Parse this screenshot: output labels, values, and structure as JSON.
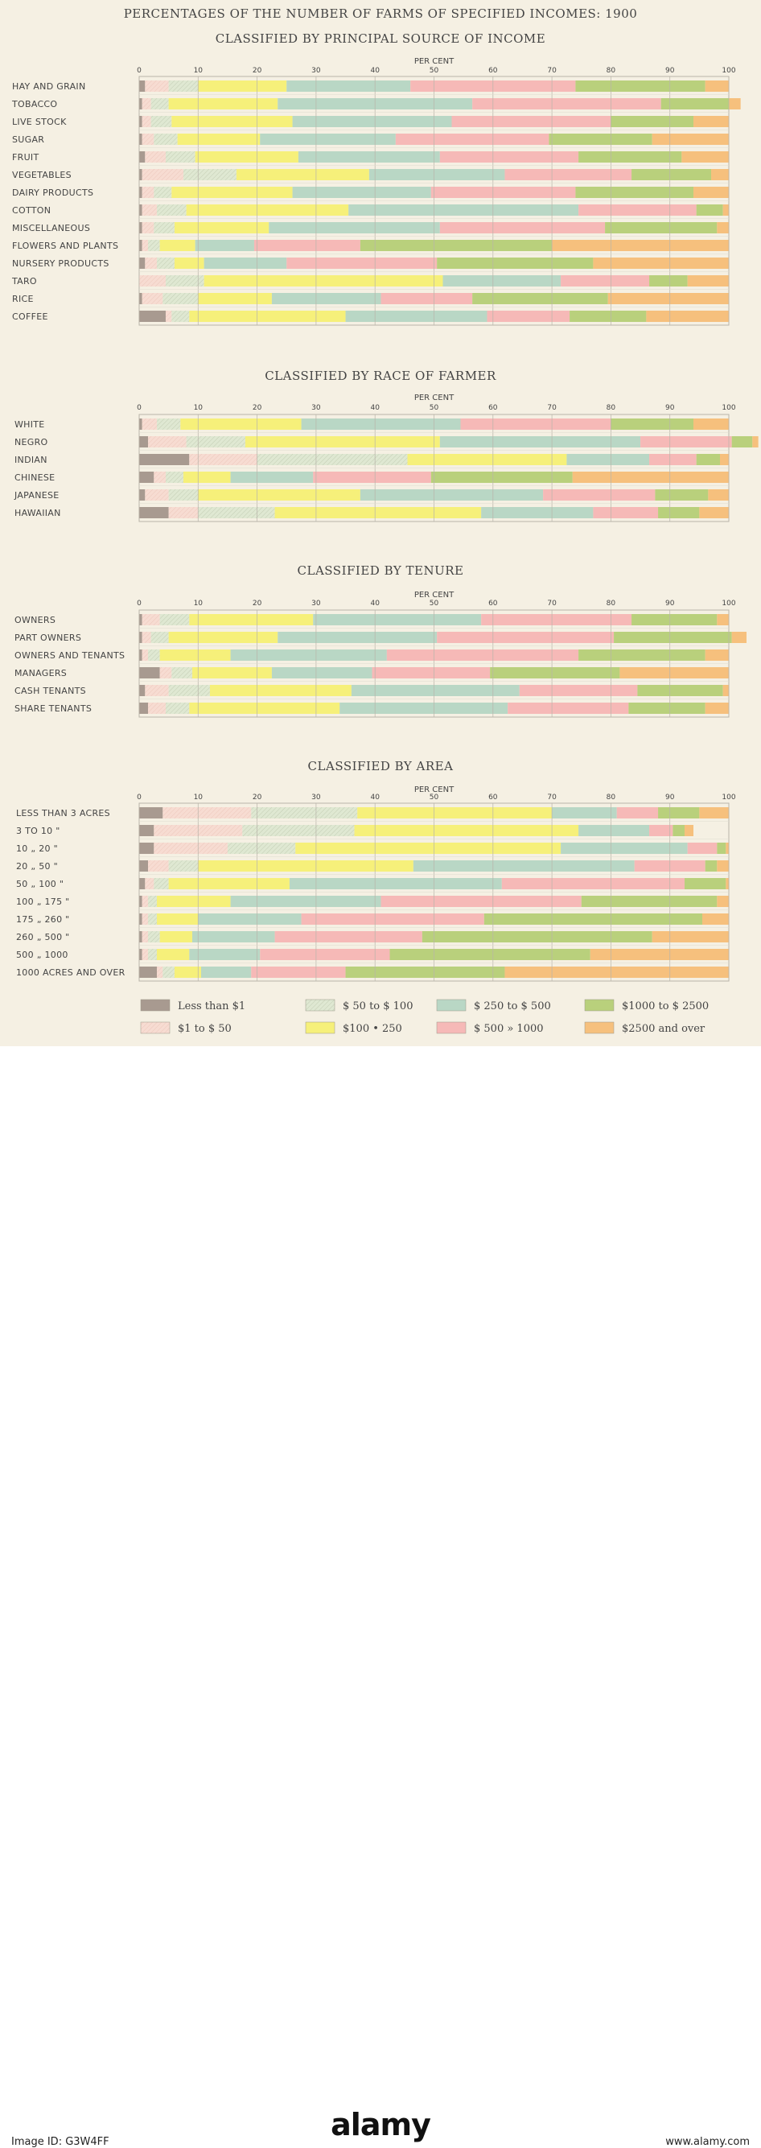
{
  "page": {
    "title": "PERCENTAGES OF THE NUMBER OF FARMS OF SPECIFIED INCOMES: 1900",
    "axis_unit": "PER CENT"
  },
  "footer": {
    "brand": "alamy",
    "image_id": "Image ID: G3W4FF",
    "domain": "www.alamy.com"
  },
  "colors": {
    "lt1": "#a89a90",
    "1to50": "#f7dcd2",
    "50to100": "#dfe8d2",
    "100to250": "#f6f07a",
    "250to500": "#b9d7c5",
    "500to1000": "#f6b9b7",
    "1000to2500": "#b9d07c",
    "2500over": "#f6c07d",
    "grid": "#b9b5aa",
    "text": "#444444"
  },
  "chart_data": [
    {
      "type": "stacked-bar",
      "title": "CLASSIFIED BY PRINCIPAL SOURCE OF INCOME",
      "xlabel": "PER CENT",
      "xlim": [
        0,
        100
      ],
      "xticks": [
        0,
        10,
        20,
        30,
        40,
        50,
        60,
        70,
        80,
        90,
        100
      ],
      "categories": [
        "HAY AND GRAIN",
        "TOBACCO",
        "LIVE STOCK",
        "SUGAR",
        "FRUIT",
        "VEGETABLES",
        "DAIRY PRODUCTS",
        "COTTON",
        "MISCELLANEOUS",
        "FLOWERS AND PLANTS",
        "NURSERY PRODUCTS",
        "TARO",
        "RICE",
        "COFFEE"
      ],
      "values": [
        [
          1,
          4,
          5,
          15,
          21,
          28,
          22,
          4
        ],
        [
          0.5,
          1.5,
          3,
          18.5,
          33,
          32,
          11.5,
          2
        ],
        [
          0.5,
          1.5,
          3.5,
          20.5,
          27,
          27,
          14,
          6
        ],
        [
          0.5,
          2,
          4,
          14,
          23,
          26,
          17.5,
          13
        ],
        [
          1,
          3.5,
          5,
          17.5,
          24,
          23.5,
          17.5,
          8
        ],
        [
          0.5,
          7,
          9,
          22.5,
          23,
          21.5,
          13.5,
          3
        ],
        [
          0.5,
          2,
          3,
          20.5,
          23.5,
          24.5,
          20,
          6
        ],
        [
          0.5,
          2.5,
          5,
          27.5,
          39,
          20,
          4.5,
          1
        ],
        [
          0.5,
          2,
          3.5,
          16,
          29,
          28,
          19,
          2
        ],
        [
          0.5,
          1,
          2,
          6,
          10,
          18,
          32.5,
          30
        ],
        [
          1,
          2,
          3,
          5,
          14,
          25.5,
          26.5,
          23
        ],
        [
          0,
          4.5,
          6.5,
          40.5,
          20,
          15,
          6.5,
          7
        ],
        [
          0.5,
          3.5,
          6,
          12.5,
          18.5,
          15.5,
          23,
          20.5
        ],
        [
          4.5,
          1,
          3,
          26.5,
          24,
          14,
          13,
          14
        ]
      ]
    },
    {
      "type": "stacked-bar",
      "title": "CLASSIFIED BY RACE OF FARMER",
      "xlabel": "PER CENT",
      "xlim": [
        0,
        100
      ],
      "xticks": [
        0,
        10,
        20,
        30,
        40,
        50,
        60,
        70,
        80,
        90,
        100
      ],
      "categories": [
        "WHITE",
        "NEGRO",
        "INDIAN",
        "CHINESE",
        "JAPANESE",
        "HAWAIIAN"
      ],
      "values": [
        [
          0.5,
          2.5,
          4,
          20.5,
          27,
          25.5,
          14,
          6
        ],
        [
          1.5,
          6.5,
          10,
          33,
          34,
          15.5,
          3.5,
          1
        ],
        [
          8.5,
          11.5,
          25.5,
          27,
          14,
          8,
          4,
          1.5
        ],
        [
          2.5,
          2,
          3,
          8,
          14,
          20,
          24,
          26.5
        ],
        [
          1,
          4,
          5,
          27.5,
          31,
          19,
          9,
          3.5
        ],
        [
          5,
          5,
          13,
          35,
          19,
          11,
          7,
          5
        ]
      ]
    },
    {
      "type": "stacked-bar",
      "title": "CLASSIFIED BY TENURE",
      "xlabel": "PER CENT",
      "xlim": [
        0,
        100
      ],
      "xticks": [
        0,
        10,
        20,
        30,
        40,
        50,
        60,
        70,
        80,
        90,
        100
      ],
      "categories": [
        "OWNERS",
        "PART OWNERS",
        "OWNERS AND TENANTS",
        "MANAGERS",
        "CASH TENANTS",
        "SHARE TENANTS"
      ],
      "values": [
        [
          0.5,
          3,
          5,
          21,
          28.5,
          25.5,
          14.5,
          2
        ],
        [
          0.5,
          1.5,
          3,
          18.5,
          27,
          30,
          20,
          2.5
        ],
        [
          0.5,
          1,
          2,
          12,
          26.5,
          32.5,
          21.5,
          4
        ],
        [
          3.5,
          2,
          3.5,
          13.5,
          17,
          20,
          22,
          18.5
        ],
        [
          1,
          4,
          7,
          24,
          28.5,
          20,
          14.5,
          1
        ],
        [
          1.5,
          3,
          4,
          25.5,
          28.5,
          20.5,
          13,
          4
        ]
      ]
    },
    {
      "type": "stacked-bar",
      "title": "CLASSIFIED BY AREA",
      "xlabel": "PER CENT",
      "xlim": [
        0,
        100
      ],
      "xticks": [
        0,
        10,
        20,
        30,
        40,
        50,
        60,
        70,
        80,
        90,
        100
      ],
      "categories": [
        "LESS THAN   3 ACRES",
        "3    TO     10     \"",
        "10     „     20     \"",
        "20     „     50     \"",
        "50     „     100     \"",
        "100     „     175     \"",
        "175     „     260     \"",
        "260     „     500     \"",
        "500     „     1000",
        "1000 ACRES AND OVER"
      ],
      "values": [
        [
          4,
          15,
          18,
          33,
          11,
          7,
          7,
          5
        ],
        [
          2.5,
          15,
          19,
          38,
          12,
          4,
          2,
          1.5
        ],
        [
          2.5,
          12.5,
          11.5,
          45,
          21.5,
          5,
          1.5,
          0.5
        ],
        [
          1.5,
          3.5,
          5,
          36.5,
          37.5,
          12,
          2,
          2
        ],
        [
          1,
          1.5,
          2.5,
          20.5,
          36,
          31,
          7,
          0.5
        ],
        [
          0.5,
          1,
          1.5,
          12.5,
          25.5,
          34,
          23,
          2
        ],
        [
          0.5,
          1,
          1.5,
          7,
          17.5,
          31,
          37,
          4.5
        ],
        [
          0.5,
          1,
          2,
          5.5,
          14,
          25,
          39,
          13
        ],
        [
          0.5,
          1,
          1.5,
          5.5,
          12,
          22,
          34,
          23.5
        ],
        [
          3,
          1,
          2,
          4.5,
          8.5,
          16,
          27,
          38
        ]
      ]
    }
  ],
  "legend": {
    "items": [
      {
        "key": "lt1",
        "label": "Less than $1"
      },
      {
        "key": "1to50",
        "label": "$1 to $ 50"
      },
      {
        "key": "50to100",
        "label": "$ 50 to $ 100"
      },
      {
        "key": "100to250",
        "label": "$100  •  250"
      },
      {
        "key": "250to500",
        "label": "$ 250 to $ 500"
      },
      {
        "key": "500to1000",
        "label": "$ 500  »  1000"
      },
      {
        "key": "1000to2500",
        "label": "$1000 to $ 2500"
      },
      {
        "key": "2500over",
        "label": "$2500 and over"
      }
    ]
  }
}
